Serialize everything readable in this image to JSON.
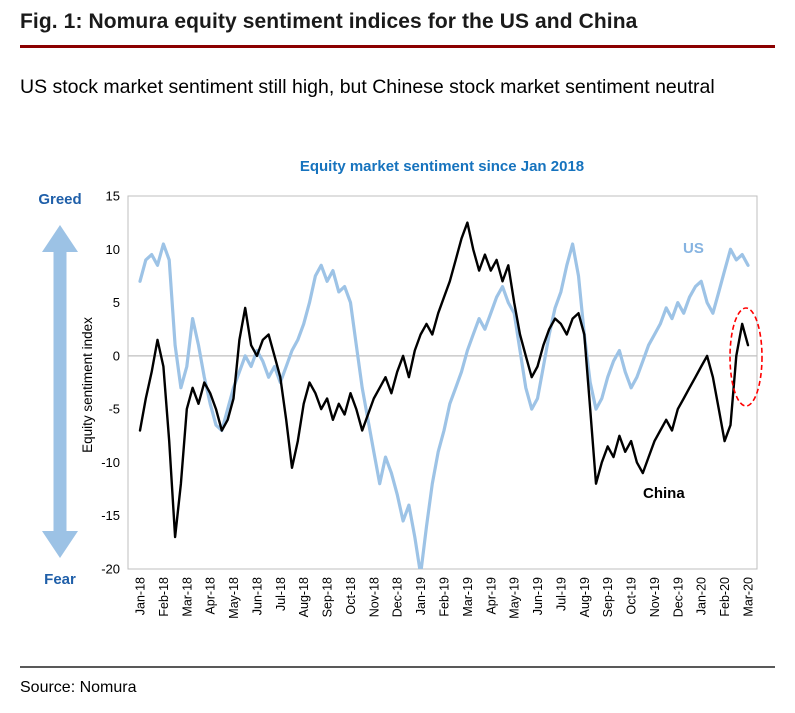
{
  "figure": {
    "title": "Fig. 1: Nomura equity sentiment indices for the US and China",
    "subtitle": "US stock market sentiment still high, but Chinese stock market sentiment neutral",
    "source": "Source: Nomura"
  },
  "colors": {
    "accent_red_rule": "#8B0000",
    "title_blue": "#1673BE",
    "greed_fear_blue": "#1F5FA9",
    "us_line": "#9DC3E6",
    "us_label_blue": "#85B3E1",
    "china_line": "#000000",
    "arrow_blue": "#9CC2E5",
    "grid_gray": "#BFBFBF",
    "highlight_red": "#FF0000"
  },
  "chart_data": {
    "type": "line",
    "title": "Equity market sentiment since Jan 2018",
    "ylabel": "Equity  sentiment index",
    "greed_label": "Greed",
    "fear_label": "Fear",
    "ylim": [
      -20,
      15
    ],
    "yticks": [
      15,
      10,
      5,
      0,
      -5,
      -10,
      -15,
      -20
    ],
    "grid": "zero-line-only",
    "legend_position": "inline-labels",
    "highlight_annotation": "red dashed ellipse around latest China rebound near Feb-20/Mar-20",
    "x_axis_labels": [
      "Jan-18",
      "Feb-18",
      "Mar-18",
      "Apr-18",
      "May-18",
      "Jun-18",
      "Jul-18",
      "Aug-18",
      "Sep-18",
      "Oct-18",
      "Nov-18",
      "Dec-18",
      "Jan-19",
      "Feb-19",
      "Mar-19",
      "Apr-19",
      "May-19",
      "Jun-19",
      "Jul-19",
      "Aug-19",
      "Sep-19",
      "Oct-19",
      "Nov-19",
      "Dec-19",
      "Jan-20",
      "Feb-20",
      "Mar-20"
    ],
    "x_start": 0,
    "x_step": 0.25,
    "x_unit": "months since Jan-18",
    "series": [
      {
        "name": "US",
        "color": "#9DC3E6",
        "width": 3.2,
        "values": [
          7,
          9,
          9.5,
          8.5,
          10.5,
          9,
          1,
          -3,
          -1,
          3.5,
          1,
          -2,
          -4.5,
          -6.5,
          -7,
          -5,
          -3,
          -1.5,
          0,
          -1,
          0.5,
          -0.5,
          -2,
          -1,
          -2.5,
          -1,
          0.5,
          1.5,
          3,
          5,
          7.5,
          8.5,
          7,
          8,
          6,
          6.5,
          5,
          1,
          -3,
          -6,
          -9,
          -12,
          -9.5,
          -11,
          -13,
          -15.5,
          -14,
          -17,
          -20.5,
          -16,
          -12,
          -9,
          -7,
          -4.5,
          -3,
          -1.5,
          0.5,
          2,
          3.5,
          2.5,
          4,
          5.5,
          6.5,
          5,
          4,
          0.5,
          -3,
          -5,
          -4,
          -1,
          2,
          4.5,
          6,
          8.5,
          10.5,
          7.5,
          2,
          -2.5,
          -5,
          -4,
          -2,
          -0.5,
          0.5,
          -1.5,
          -3,
          -2,
          -0.5,
          1,
          2,
          3,
          4.5,
          3.5,
          5,
          4,
          5.5,
          6.5,
          7,
          5,
          4,
          6,
          8,
          10,
          9,
          9.5,
          8.5
        ]
      },
      {
        "name": "China",
        "color": "#000000",
        "width": 2.4,
        "values": [
          -7,
          -4,
          -1.5,
          1.5,
          -1,
          -8,
          -17,
          -12,
          -5,
          -3,
          -4.5,
          -2.5,
          -3.5,
          -5,
          -7,
          -6,
          -4,
          1.5,
          4.5,
          1,
          0,
          1.5,
          2,
          0,
          -2,
          -6,
          -10.5,
          -8,
          -4.5,
          -2.5,
          -3.5,
          -5,
          -4,
          -6,
          -4.5,
          -5.5,
          -3.5,
          -5,
          -7,
          -5.5,
          -4,
          -3,
          -2,
          -3.5,
          -1.5,
          0,
          -2,
          0.5,
          2,
          3,
          2,
          4,
          5.5,
          7,
          9,
          11,
          12.5,
          10,
          8,
          9.5,
          8,
          9,
          7,
          8.5,
          5,
          2,
          0,
          -2,
          -1,
          1,
          2.5,
          3.5,
          3,
          2,
          3.5,
          4,
          2,
          -5,
          -12,
          -10,
          -8.5,
          -9.5,
          -7.5,
          -9,
          -8,
          -10,
          -11,
          -9.5,
          -8,
          -7,
          -6,
          -7,
          -5,
          -4,
          -3,
          -2,
          -1,
          0,
          -2,
          -5,
          -8,
          -6.5,
          0,
          3,
          1
        ]
      }
    ]
  }
}
